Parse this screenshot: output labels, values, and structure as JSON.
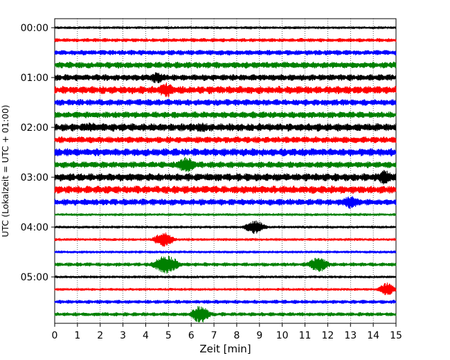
{
  "chart_data": {
    "type": "line",
    "title": "",
    "xlabel": "Zeit  [min]",
    "ylabel": "UTC (Lokalzeit = UTC + 01:00)",
    "xlim": [
      0,
      15
    ],
    "x_ticks": [
      0,
      1,
      2,
      3,
      4,
      5,
      6,
      7,
      8,
      9,
      10,
      11,
      12,
      13,
      14,
      15
    ],
    "y_tick_labels": [
      "00:00",
      "01:00",
      "02:00",
      "03:00",
      "04:00",
      "05:00"
    ],
    "y_tick_rows": [
      0,
      4,
      8,
      12,
      16,
      20
    ],
    "grid": "vertical-dotted",
    "colors": [
      "#000000",
      "#ff0000",
      "#0000ff",
      "#008000"
    ],
    "series": [
      {
        "name": "00:00",
        "color": "#000000",
        "base": 2,
        "events": []
      },
      {
        "name": "00:15",
        "color": "#ff0000",
        "base": 3,
        "events": []
      },
      {
        "name": "00:30",
        "color": "#0000ff",
        "base": 4,
        "events": []
      },
      {
        "name": "00:45",
        "color": "#008000",
        "base": 5,
        "events": []
      },
      {
        "name": "01:00",
        "color": "#000000",
        "base": 5,
        "events": [
          {
            "t": 4.5,
            "amp": 9,
            "width": 0.35
          }
        ]
      },
      {
        "name": "01:15",
        "color": "#ff0000",
        "base": 6,
        "events": [
          {
            "t": 4.9,
            "amp": 11,
            "width": 0.4
          }
        ]
      },
      {
        "name": "01:30",
        "color": "#0000ff",
        "base": 5,
        "events": []
      },
      {
        "name": "01:45",
        "color": "#008000",
        "base": 5,
        "events": []
      },
      {
        "name": "02:00",
        "color": "#000000",
        "base": 6,
        "events": [
          {
            "t": 1.6,
            "amp": 7,
            "width": 0.5
          },
          {
            "t": 6.5,
            "amp": 7,
            "width": 0.5
          }
        ]
      },
      {
        "name": "02:15",
        "color": "#ff0000",
        "base": 5,
        "events": []
      },
      {
        "name": "02:30",
        "color": "#0000ff",
        "base": 6,
        "events": []
      },
      {
        "name": "02:45",
        "color": "#008000",
        "base": 5,
        "events": [
          {
            "t": 5.8,
            "amp": 12,
            "width": 0.45
          }
        ]
      },
      {
        "name": "03:00",
        "color": "#000000",
        "base": 6,
        "events": [
          {
            "t": 14.5,
            "amp": 11,
            "width": 0.35
          }
        ]
      },
      {
        "name": "03:15",
        "color": "#ff0000",
        "base": 6,
        "events": []
      },
      {
        "name": "03:30",
        "color": "#0000ff",
        "base": 5,
        "events": [
          {
            "t": 13.0,
            "amp": 10,
            "width": 0.4
          }
        ]
      },
      {
        "name": "03:45",
        "color": "#008000",
        "base": 2,
        "events": []
      },
      {
        "name": "04:00",
        "color": "#000000",
        "base": 2,
        "events": [
          {
            "t": 8.8,
            "amp": 10,
            "width": 0.45
          }
        ]
      },
      {
        "name": "04:15",
        "color": "#ff0000",
        "base": 2,
        "events": [
          {
            "t": 4.8,
            "amp": 11,
            "width": 0.45
          }
        ]
      },
      {
        "name": "04:30",
        "color": "#0000ff",
        "base": 2,
        "events": []
      },
      {
        "name": "04:45",
        "color": "#008000",
        "base": 3,
        "events": [
          {
            "t": 4.9,
            "amp": 14,
            "width": 0.55
          },
          {
            "t": 11.6,
            "amp": 11,
            "width": 0.45
          }
        ]
      },
      {
        "name": "05:00",
        "color": "#000000",
        "base": 2,
        "events": []
      },
      {
        "name": "05:15",
        "color": "#ff0000",
        "base": 2,
        "events": [
          {
            "t": 14.6,
            "amp": 10,
            "width": 0.35
          }
        ]
      },
      {
        "name": "05:30",
        "color": "#0000ff",
        "base": 3,
        "events": []
      },
      {
        "name": "05:45",
        "color": "#008000",
        "base": 3,
        "events": [
          {
            "t": 6.4,
            "amp": 13,
            "width": 0.4
          }
        ]
      }
    ]
  }
}
